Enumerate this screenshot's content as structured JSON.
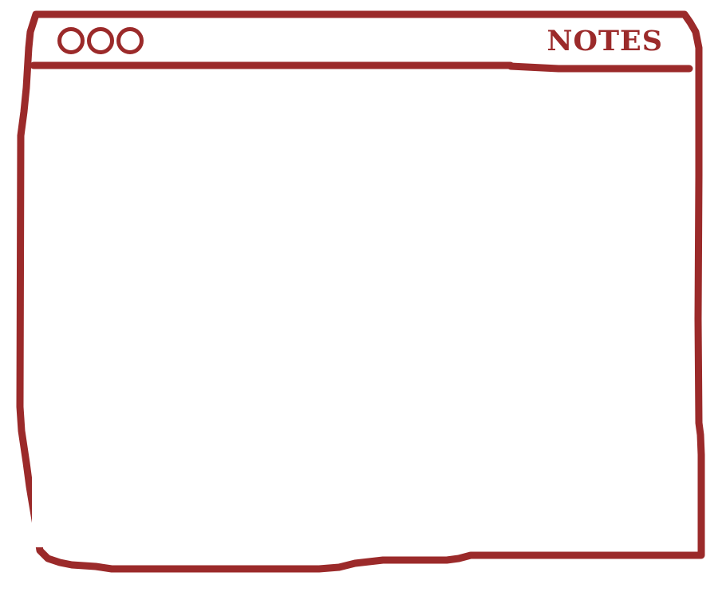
{
  "window": {
    "title": "NOTES",
    "controls": [
      "close",
      "minimize",
      "maximize"
    ]
  },
  "colors": {
    "accent": "#9b2a2a",
    "background": "#ffffff"
  },
  "content": {
    "text": ""
  }
}
